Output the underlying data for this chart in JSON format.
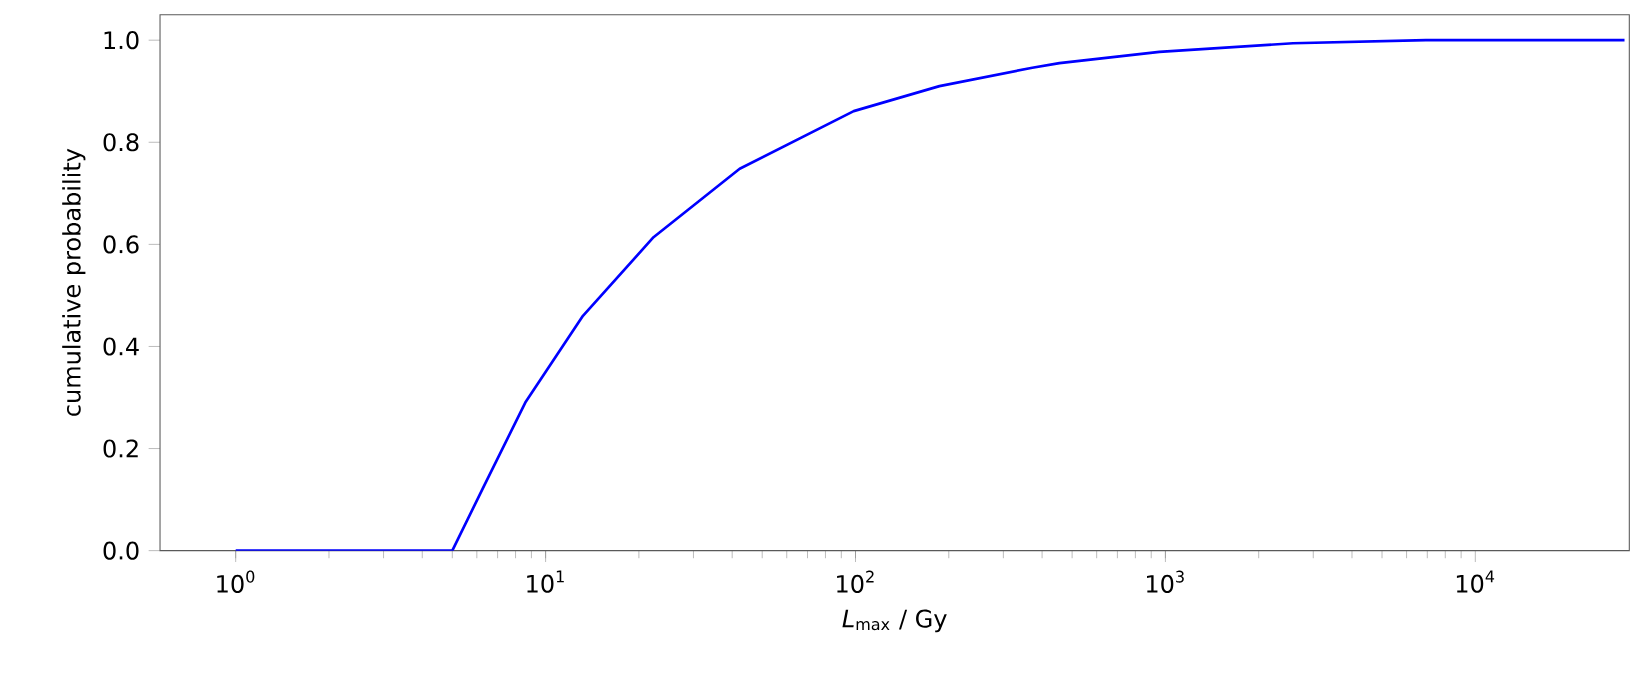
{
  "chart_data": {
    "type": "line",
    "xlabel": "*L*$_{max}$ / Gy",
    "ylabel": "cumulative probability",
    "log": "x",
    "grid": false,
    "xlim": [
      0.57,
      31400
    ],
    "ylim": [
      0,
      1.05
    ],
    "xticks": [
      {
        "value": 1,
        "label": "10$^{0}$"
      },
      {
        "value": 10,
        "label": "10$^{1}$"
      },
      {
        "value": 100,
        "label": "10$^{2}$"
      },
      {
        "value": 1000,
        "label": "10$^{3}$"
      },
      {
        "value": 10000,
        "label": "10$^{4}$"
      }
    ],
    "yticks": [
      {
        "value": 0,
        "label": "0.0"
      },
      {
        "value": 0.2,
        "label": "0.2"
      },
      {
        "value": 0.4,
        "label": "0.4"
      },
      {
        "value": 0.6,
        "label": "0.6"
      },
      {
        "value": 0.8,
        "label": "0.8"
      },
      {
        "value": 1.0,
        "label": "1.0"
      }
    ],
    "series": [
      {
        "color": "#0000ff",
        "x": [
          1,
          5,
          6.25,
          8.6,
          13.2,
          22.3,
          42.3,
          98.7,
          186.6,
          372,
          455,
          956,
          2580,
          6930,
          30300
        ],
        "values": [
          0,
          0,
          0.12,
          0.29,
          0.46,
          0.614,
          0.748,
          0.861,
          0.91,
          0.946,
          0.955,
          0.977,
          0.994,
          1.0,
          1.0
        ]
      }
    ]
  }
}
